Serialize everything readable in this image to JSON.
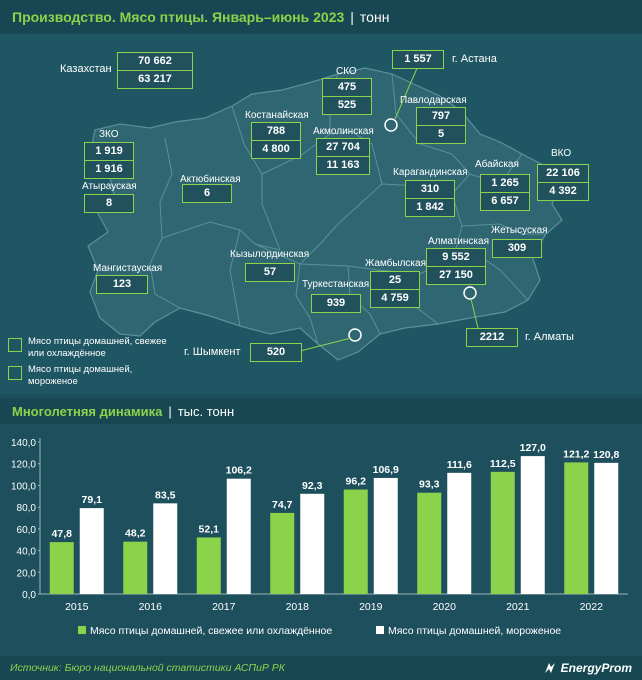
{
  "header": {
    "title": "Производство. Мясо птицы. Январь–июнь 2023",
    "unit": "тонн"
  },
  "map": {
    "country": {
      "label": "Казахстан",
      "fresh": "70 662",
      "frozen": "63 217"
    },
    "regions": [
      {
        "id": "sko",
        "label": "СКО",
        "fresh": "475",
        "frozen": "525"
      },
      {
        "id": "astana",
        "label": "г. Астана",
        "fresh": "1 557"
      },
      {
        "id": "pavlodar",
        "label": "Павлодарская",
        "fresh": "797",
        "frozen": "5"
      },
      {
        "id": "kostanay",
        "label": "Костанайская",
        "fresh": "788",
        "frozen": "4 800"
      },
      {
        "id": "akmola",
        "label": "Акмолинская",
        "fresh": "27 704",
        "frozen": "11 163"
      },
      {
        "id": "zko",
        "label": "ЗКО",
        "fresh": "1 919",
        "frozen": "1 916"
      },
      {
        "id": "atyrau",
        "label": "Атырауская",
        "fresh": "8"
      },
      {
        "id": "aktobe",
        "label": "Актюбинская",
        "fresh": "6"
      },
      {
        "id": "karaganda",
        "label": "Карагандинская",
        "fresh": "310",
        "frozen": "1 842"
      },
      {
        "id": "abay",
        "label": "Абайская",
        "fresh": "1 265",
        "frozen": "6 657"
      },
      {
        "id": "vko",
        "label": "ВКО",
        "fresh": "22 106",
        "frozen": "4 392"
      },
      {
        "id": "zhetysu",
        "label": "Жетысуская",
        "fresh": "309"
      },
      {
        "id": "almaty_obl",
        "label": "Алматинская",
        "fresh": "9 552",
        "frozen": "27 150"
      },
      {
        "id": "mangistau",
        "label": "Мангистауская",
        "fresh": "123"
      },
      {
        "id": "kyzylorda",
        "label": "Кызылординская",
        "fresh": "57"
      },
      {
        "id": "zhambyl",
        "label": "Жамбылская",
        "fresh": "25",
        "frozen": "4 759"
      },
      {
        "id": "turkestan",
        "label": "Туркестанская",
        "fresh": "939"
      },
      {
        "id": "shymkent",
        "label": "г. Шымкент",
        "fresh": "520"
      },
      {
        "id": "almaty_city",
        "label": "г. Алматы",
        "fresh": "2212"
      }
    ],
    "legend": {
      "fresh": "Мясо птицы домашней, свежее или охлаждённое",
      "frozen": "Мясо птицы домашней, мороженое"
    }
  },
  "section2": {
    "title": "Многолетняя динамика",
    "unit": "тыс. тонн"
  },
  "chart_data": {
    "type": "bar",
    "categories": [
      "2015",
      "2016",
      "2017",
      "2018",
      "2019",
      "2020",
      "2021",
      "2022"
    ],
    "series": [
      {
        "name": "Мясо птицы домашней, свежее или охлаждённое",
        "values": [
          47.8,
          48.2,
          52.1,
          74.7,
          96.2,
          93.3,
          112.5,
          121.2
        ],
        "labels": [
          "47,8",
          "48,2",
          "52,1",
          "74,7",
          "96,2",
          "93,3",
          "112,5",
          "121,2"
        ],
        "color": "#8bd34a"
      },
      {
        "name": "Мясо птицы домашней, мороженое",
        "values": [
          79.1,
          83.5,
          106.2,
          92.3,
          106.9,
          111.6,
          127.0,
          120.8
        ],
        "labels": [
          "79,1",
          "83,5",
          "106,2",
          "92,3",
          "106,9",
          "111,6",
          "127,0",
          "120,8"
        ],
        "color": "#ffffff"
      }
    ],
    "yticks": [
      "0,0",
      "20,0",
      "40,0",
      "60,0",
      "80,0",
      "100,0",
      "120,0",
      "140,0"
    ],
    "ylim": [
      0,
      140
    ],
    "grid": false,
    "legend_position": "bottom"
  },
  "footer": {
    "source": "Источник: Бюро национальной статистики АСПиР РК",
    "brand": "EnergyProm"
  }
}
